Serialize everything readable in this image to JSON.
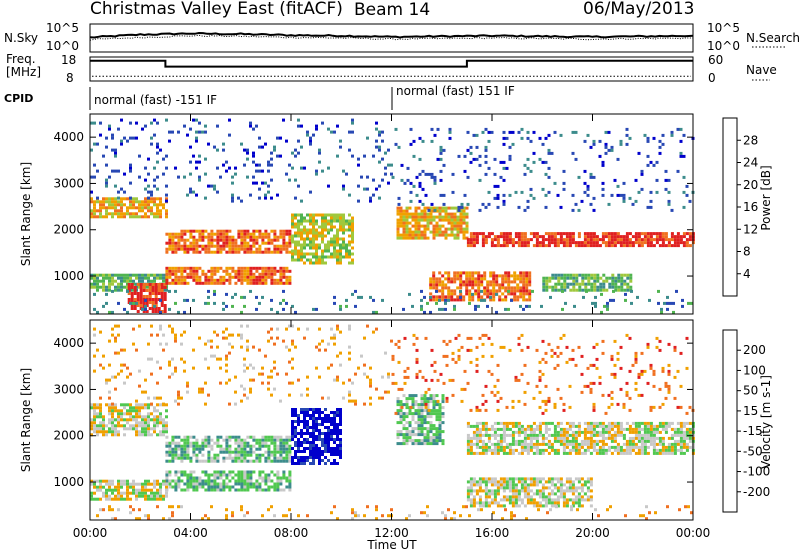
{
  "header": {
    "station": "Christmas Valley East (fitACF)",
    "beam": "Beam 14",
    "date": "06/May/2013"
  },
  "chart_data": [
    {
      "type": "line",
      "panel": "noise",
      "left_label": "N.Sky",
      "right_label": "N.Search",
      "left_ticks": [
        "10^5",
        "10^0"
      ],
      "right_ticks": [
        "10^5",
        "10^0"
      ],
      "series": [
        {
          "name": "N.Sky",
          "x": [
            0,
            2,
            4,
            6,
            8,
            10,
            12,
            14,
            16,
            18,
            20,
            22,
            24
          ],
          "y": [
            2.6,
            3.1,
            3.3,
            3.2,
            3.0,
            2.9,
            2.7,
            2.8,
            2.9,
            2.8,
            2.7,
            2.8,
            2.9
          ]
        },
        {
          "name": "N.Search",
          "x": [
            0,
            2,
            4,
            6,
            8,
            10,
            12,
            14,
            16,
            18,
            20,
            22,
            24
          ],
          "y": [
            2.2,
            2.6,
            2.9,
            2.8,
            2.6,
            2.5,
            2.3,
            2.4,
            2.5,
            2.4,
            2.3,
            2.4,
            2.5
          ]
        }
      ]
    },
    {
      "type": "line",
      "panel": "frequency",
      "left_label_1": "Freq.",
      "left_label_2": "[MHz]",
      "right_label": "Nave",
      "left_ticks": [
        "18",
        "8"
      ],
      "right_ticks": [
        "60",
        "0"
      ],
      "ylim": [
        8,
        18
      ],
      "series": [
        {
          "name": "Freq.",
          "x": [
            0,
            3.0,
            3.0,
            15.0,
            15.0,
            24
          ],
          "y": [
            16.4,
            16.4,
            14.0,
            14.0,
            16.4,
            16.4
          ]
        }
      ],
      "nave_level": 12
    },
    {
      "type": "table",
      "panel": "cpid",
      "label": "CPID",
      "segments": [
        {
          "start": 0,
          "end": 12,
          "text": "normal (fast) -151 IF"
        },
        {
          "start": 12,
          "end": 24,
          "text": "normal (fast) 151 IF"
        }
      ]
    },
    {
      "type": "heatmap",
      "panel": "power",
      "ylabel": "Slant Range [km]",
      "ylim": [
        180,
        4500
      ],
      "yticks": [
        1000,
        2000,
        3000,
        4000
      ],
      "colorbar_label": "Power [dB]",
      "colorbar_ticks": [
        "28",
        "24",
        "20",
        "16",
        "12",
        "8",
        "4"
      ],
      "colors": [
        "#0000cc",
        "#2848b4",
        "#3c8c8c",
        "#50b450",
        "#a0c83c",
        "#f0a000",
        "#f07020",
        "#e02020"
      ],
      "bands": [
        {
          "x0": 0,
          "x1": 3,
          "r0": 2250,
          "r1": 2700,
          "level": 5
        },
        {
          "x0": 0,
          "x1": 3,
          "r0": 700,
          "r1": 1050,
          "level": 3
        },
        {
          "x0": 1.5,
          "x1": 3,
          "r0": 250,
          "r1": 850,
          "level": 7
        },
        {
          "x0": 3,
          "x1": 8,
          "r0": 1500,
          "r1": 2000,
          "level": 6
        },
        {
          "x0": 3,
          "x1": 8,
          "r0": 850,
          "r1": 1200,
          "level": 6
        },
        {
          "x0": 8,
          "x1": 10.5,
          "r0": 1250,
          "r1": 2350,
          "level": 4
        },
        {
          "x0": 12.2,
          "x1": 15,
          "r0": 1800,
          "r1": 2500,
          "level": 5
        },
        {
          "x0": 13.5,
          "x1": 17.5,
          "r0": 500,
          "r1": 1100,
          "level": 6
        },
        {
          "x0": 15,
          "x1": 24,
          "r0": 1650,
          "r1": 1950,
          "level": 7
        },
        {
          "x0": 18,
          "x1": 21.5,
          "r0": 700,
          "r1": 1050,
          "level": 3
        }
      ],
      "speckles": [
        {
          "x0": 0,
          "x1": 12,
          "r0": 2600,
          "r1": 4400,
          "level": 1
        },
        {
          "x0": 12,
          "x1": 24,
          "r0": 2400,
          "r1": 4200,
          "level": 1
        },
        {
          "x0": 0,
          "x1": 24,
          "r0": 200,
          "r1": 700,
          "level": 2
        }
      ]
    },
    {
      "type": "heatmap",
      "panel": "velocity",
      "ylabel": "Slant Range [km]",
      "ylim": [
        180,
        4500
      ],
      "yticks": [
        1000,
        2000,
        3000,
        4000
      ],
      "xlabel": "Time UT",
      "xticks": [
        "00:00",
        "04:00",
        "08:00",
        "12:00",
        "16:00",
        "20:00",
        "00:00"
      ],
      "colorbar_label": "Velocity [m s-1]",
      "colorbar_ticks": [
        "200",
        "100",
        "50",
        "15",
        "-15",
        "-50",
        "-100",
        "-200"
      ],
      "colors": [
        "#0000cc",
        "#2848b4",
        "#3c8c8c",
        "#50c850",
        "#c8c8c8",
        "#f0a000",
        "#f07020",
        "#e02020"
      ],
      "bands": [
        {
          "x0": 0,
          "x1": 3,
          "r0": 2000,
          "r1": 2700,
          "level": 4
        },
        {
          "x0": 0,
          "x1": 3,
          "r0": 600,
          "r1": 1050,
          "level": 4
        },
        {
          "x0": 3,
          "x1": 8,
          "r0": 1450,
          "r1": 2000,
          "level": 3
        },
        {
          "x0": 3,
          "x1": 8,
          "r0": 850,
          "r1": 1250,
          "level": 3
        },
        {
          "x0": 8,
          "x1": 10,
          "r0": 1400,
          "r1": 2600,
          "level": 0
        },
        {
          "x0": 12.2,
          "x1": 14,
          "r0": 1800,
          "r1": 2900,
          "level": 3
        },
        {
          "x0": 15,
          "x1": 24,
          "r0": 1600,
          "r1": 2300,
          "level": 4
        },
        {
          "x0": 15,
          "x1": 20,
          "r0": 500,
          "r1": 1100,
          "level": 4
        }
      ],
      "speckles": [
        {
          "x0": 0,
          "x1": 12,
          "r0": 2700,
          "r1": 4400,
          "level": 5
        },
        {
          "x0": 12,
          "x1": 24,
          "r0": 2500,
          "r1": 4200,
          "level": 6
        },
        {
          "x0": 0,
          "x1": 24,
          "r0": 200,
          "r1": 500,
          "level": 5
        }
      ]
    }
  ]
}
